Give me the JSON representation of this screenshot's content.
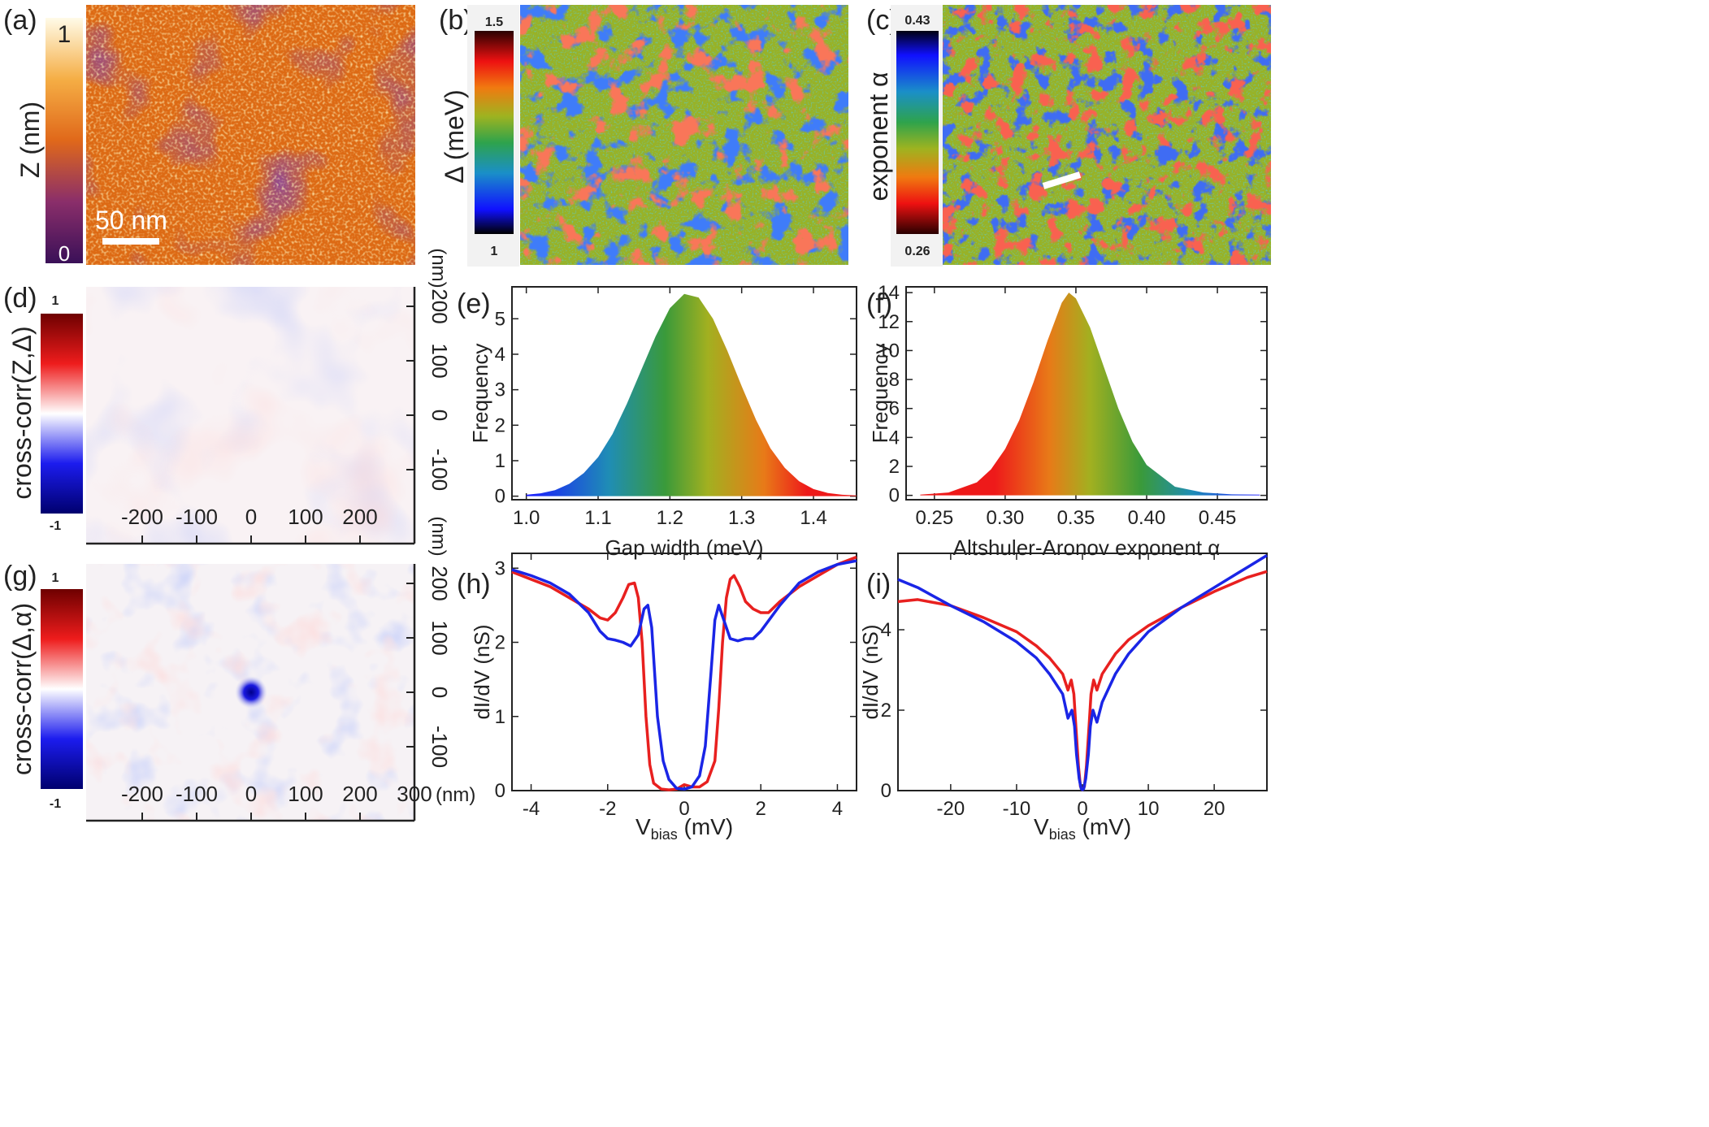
{
  "panels": {
    "a": {
      "label": "(a)",
      "colorbar_max": "1",
      "colorbar_min": "0",
      "colorbar_title": "Z (nm)",
      "scalebar_label": "50 nm"
    },
    "b": {
      "label": "(b)",
      "colorbar_max": "1.5",
      "colorbar_min": "1",
      "colorbar_title": "Δ (meV)"
    },
    "c": {
      "label": "(c)",
      "colorbar_max": "0.43",
      "colorbar_min": "0.26",
      "colorbar_title": "exponent α"
    },
    "d": {
      "label": "(d)",
      "colorbar_max": "1",
      "colorbar_min": "-1",
      "colorbar_title": "cross-corr(Z,Δ)",
      "x_ticks": [
        "-200",
        "-100",
        "0",
        "100",
        "200"
      ],
      "y_ticks": [
        "200",
        "100",
        "0",
        "-100"
      ],
      "y_unit": "(nm)",
      "x_unit": "(nm)"
    },
    "g": {
      "label": "(g)",
      "colorbar_max": "1",
      "colorbar_min": "-1",
      "colorbar_title": "cross-corr(Δ,α)",
      "x_ticks": [
        "-200",
        "-100",
        "0",
        "100",
        "200",
        "300"
      ],
      "y_ticks": [
        "200",
        "100",
        "0",
        "-100"
      ],
      "x_unit": "(nm)"
    },
    "e": {
      "label": "(e)"
    },
    "f": {
      "label": "(f)"
    },
    "h": {
      "label": "(h)"
    },
    "i": {
      "label": "(i)"
    }
  },
  "chart_data": [
    {
      "id": "e",
      "type": "area",
      "xlabel": "Gap width (meV)",
      "ylabel": "Frequency",
      "xlim": [
        0.98,
        1.46
      ],
      "ylim": [
        -0.1,
        5.9
      ],
      "xticks": [
        1.0,
        1.1,
        1.2,
        1.3,
        1.4
      ],
      "xtick_labels": [
        "1.0",
        "1.1",
        "1.2",
        "1.3",
        "1.4"
      ],
      "yticks": [
        0,
        1,
        2,
        3,
        4,
        5
      ],
      "ytick_labels": [
        "0",
        "1",
        "2",
        "3",
        "4",
        "5"
      ],
      "x": [
        1.0,
        1.02,
        1.04,
        1.06,
        1.08,
        1.1,
        1.12,
        1.14,
        1.16,
        1.18,
        1.2,
        1.22,
        1.24,
        1.26,
        1.28,
        1.3,
        1.32,
        1.34,
        1.36,
        1.38,
        1.4,
        1.42,
        1.44,
        1.46
      ],
      "y": [
        0.04,
        0.08,
        0.17,
        0.35,
        0.65,
        1.1,
        1.75,
        2.6,
        3.55,
        4.5,
        5.3,
        5.7,
        5.6,
        5.0,
        4.1,
        3.1,
        2.15,
        1.35,
        0.8,
        0.42,
        0.2,
        0.09,
        0.04,
        0.02
      ]
    },
    {
      "id": "f",
      "type": "area",
      "xlabel": "Altshuler-Aronov exponent α",
      "ylabel": "Frequency",
      "xlim": [
        0.23,
        0.485
      ],
      "ylim": [
        -0.3,
        14.4
      ],
      "xticks": [
        0.25,
        0.3,
        0.35,
        0.4,
        0.45
      ],
      "xtick_labels": [
        "0.25",
        "0.30",
        "0.35",
        "0.40",
        "0.45"
      ],
      "yticks": [
        0,
        2,
        4,
        6,
        8,
        10,
        12,
        14
      ],
      "ytick_labels": [
        "0",
        "2",
        "4",
        "6",
        "8",
        "10",
        "12",
        "14"
      ],
      "x": [
        0.24,
        0.26,
        0.28,
        0.29,
        0.3,
        0.31,
        0.32,
        0.33,
        0.34,
        0.345,
        0.35,
        0.36,
        0.37,
        0.38,
        0.39,
        0.4,
        0.42,
        0.44,
        0.46,
        0.48
      ],
      "y": [
        0.05,
        0.2,
        0.9,
        1.8,
        3.2,
        5.2,
        7.8,
        10.7,
        13.3,
        14.0,
        13.6,
        11.6,
        8.8,
        6.0,
        3.7,
        2.1,
        0.6,
        0.2,
        0.07,
        0.05
      ]
    },
    {
      "id": "h",
      "type": "line",
      "xlabel": "V",
      "xlabel_sub": "bias",
      "xlabel_unit": " (mV)",
      "ylabel": "dI/dV (nS)",
      "xlim": [
        -4.5,
        4.5
      ],
      "ylim": [
        0,
        3.2
      ],
      "xticks": [
        -4,
        -2,
        0,
        2,
        4
      ],
      "xtick_labels": [
        "-4",
        "-2",
        "0",
        "2",
        "4"
      ],
      "yticks": [
        0,
        1,
        2,
        3
      ],
      "ytick_labels": [
        "0",
        "1",
        "2",
        "3"
      ],
      "series": [
        {
          "name": "red",
          "color": "#e8201f",
          "x": [
            -4.5,
            -4.0,
            -3.5,
            -3.0,
            -2.5,
            -2.2,
            -2.0,
            -1.8,
            -1.6,
            -1.45,
            -1.3,
            -1.2,
            -1.1,
            -1.0,
            -0.9,
            -0.8,
            -0.6,
            -0.4,
            -0.2,
            0.0,
            0.2,
            0.4,
            0.6,
            0.8,
            0.9,
            1.0,
            1.1,
            1.2,
            1.3,
            1.45,
            1.6,
            1.8,
            2.0,
            2.2,
            2.5,
            3.0,
            3.5,
            4.0,
            4.5
          ],
          "y": [
            2.95,
            2.85,
            2.75,
            2.6,
            2.45,
            2.33,
            2.3,
            2.4,
            2.6,
            2.78,
            2.8,
            2.6,
            2.0,
            1.0,
            0.35,
            0.1,
            0.02,
            0.01,
            0.02,
            0.08,
            0.05,
            0.05,
            0.12,
            0.4,
            1.1,
            2.0,
            2.6,
            2.85,
            2.9,
            2.75,
            2.55,
            2.45,
            2.4,
            2.4,
            2.55,
            2.75,
            2.9,
            3.05,
            3.15
          ]
        },
        {
          "name": "blue",
          "color": "#1a25e6",
          "x": [
            -4.5,
            -4.0,
            -3.5,
            -3.0,
            -2.5,
            -2.2,
            -2.0,
            -1.8,
            -1.6,
            -1.4,
            -1.2,
            -1.05,
            -0.95,
            -0.85,
            -0.7,
            -0.55,
            -0.4,
            -0.2,
            0.0,
            0.2,
            0.4,
            0.55,
            0.7,
            0.8,
            0.9,
            1.0,
            1.2,
            1.4,
            1.6,
            1.8,
            2.0,
            2.5,
            3.0,
            3.5,
            4.0,
            4.5
          ],
          "y": [
            2.98,
            2.9,
            2.8,
            2.65,
            2.4,
            2.15,
            2.05,
            2.03,
            2.0,
            1.95,
            2.1,
            2.45,
            2.5,
            2.2,
            1.0,
            0.4,
            0.15,
            0.03,
            0.02,
            0.05,
            0.2,
            0.6,
            1.6,
            2.3,
            2.5,
            2.35,
            2.05,
            2.02,
            2.05,
            2.05,
            2.15,
            2.5,
            2.8,
            2.95,
            3.05,
            3.1
          ]
        }
      ]
    },
    {
      "id": "i",
      "type": "line",
      "xlabel": "V",
      "xlabel_sub": "bias",
      "xlabel_unit": " (mV)",
      "ylabel": "dI/dV (nS)",
      "xlim": [
        -28,
        28
      ],
      "ylim": [
        0,
        5.9
      ],
      "xticks": [
        -20,
        -10,
        0,
        10,
        20
      ],
      "xtick_labels": [
        "-20",
        "-10",
        "0",
        "10",
        "20"
      ],
      "yticks": [
        0,
        2,
        4
      ],
      "ytick_labels": [
        "0",
        "2",
        "4"
      ],
      "series": [
        {
          "name": "red",
          "color": "#e8201f",
          "x": [
            -28,
            -25,
            -20,
            -15,
            -10,
            -7,
            -5,
            -3,
            -2.2,
            -1.7,
            -1.3,
            -1.0,
            -0.6,
            -0.3,
            0.0,
            0.3,
            0.6,
            1.0,
            1.3,
            1.7,
            2.2,
            3,
            5,
            7,
            10,
            15,
            20,
            25,
            28
          ],
          "y": [
            4.7,
            4.75,
            4.6,
            4.3,
            3.95,
            3.6,
            3.3,
            2.9,
            2.5,
            2.75,
            2.4,
            1.6,
            0.6,
            0.1,
            0.02,
            0.1,
            0.6,
            1.6,
            2.4,
            2.75,
            2.5,
            2.9,
            3.4,
            3.75,
            4.1,
            4.55,
            4.95,
            5.3,
            5.45
          ]
        },
        {
          "name": "blue",
          "color": "#1a25e6",
          "x": [
            -28,
            -25,
            -20,
            -15,
            -10,
            -7,
            -5,
            -3,
            -2.2,
            -1.6,
            -1.2,
            -0.9,
            -0.5,
            -0.2,
            0.0,
            0.2,
            0.5,
            0.9,
            1.2,
            1.6,
            2.2,
            3,
            5,
            7,
            10,
            15,
            20,
            25,
            28
          ],
          "y": [
            5.25,
            5.05,
            4.6,
            4.2,
            3.7,
            3.3,
            2.9,
            2.4,
            1.8,
            2.0,
            1.6,
            0.9,
            0.3,
            0.05,
            0.02,
            0.05,
            0.3,
            0.9,
            1.6,
            2.0,
            1.7,
            2.2,
            2.9,
            3.4,
            3.95,
            4.55,
            5.05,
            5.55,
            5.85
          ]
        }
      ]
    }
  ]
}
